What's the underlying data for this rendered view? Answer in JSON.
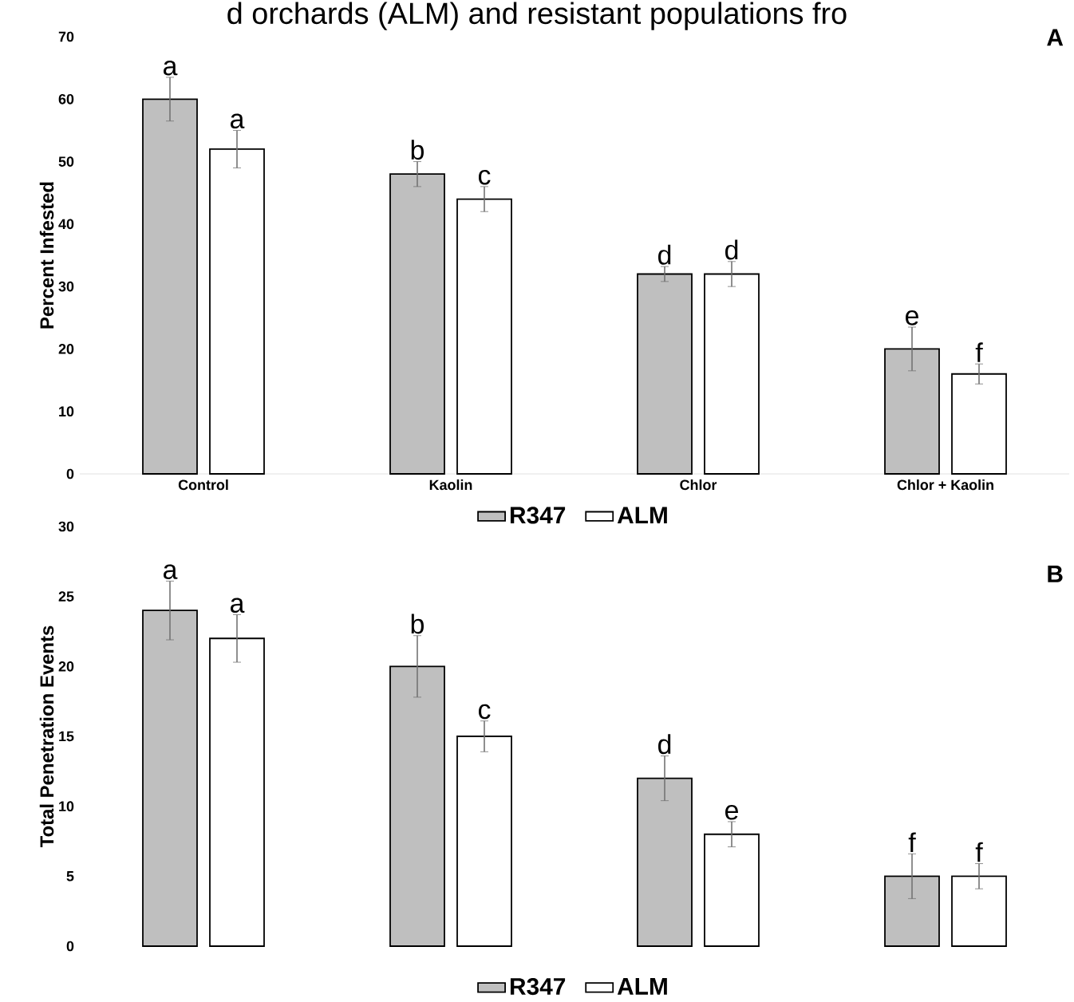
{
  "chart_data": [
    {
      "type": "bar",
      "title": "d orchards (ALM) and resistant populations fro",
      "ylabel": "Percent Infested",
      "categories": [
        "Control",
        "Kaolin",
        "Chlor",
        "Chlor + Kaolin"
      ],
      "ylim": [
        0,
        70
      ],
      "yticks": [
        0,
        10,
        20,
        30,
        40,
        50,
        60,
        70
      ],
      "legend": "bottom",
      "grid": false,
      "annotations": [
        "A"
      ],
      "series": [
        {
          "name": "R347",
          "color": "#bfbfbf",
          "values": [
            60,
            48,
            32,
            20
          ],
          "errors": [
            3.5,
            2,
            1.2,
            3.5
          ],
          "value_labels": [
            "a",
            "b",
            "d",
            "e"
          ]
        },
        {
          "name": "ALM",
          "color": "#ffffff",
          "values": [
            52,
            44,
            32,
            16
          ],
          "errors": [
            3,
            2,
            2,
            1.6
          ],
          "value_labels": [
            "a",
            "c",
            "d",
            "f"
          ]
        }
      ]
    },
    {
      "type": "bar",
      "ylabel": "Total Penetration Events",
      "categories": [
        null,
        null,
        null,
        null
      ],
      "ylim": [
        0,
        30
      ],
      "yticks": [
        0,
        5,
        10,
        15,
        20,
        25,
        30
      ],
      "legend": "bottom",
      "grid": false,
      "annotations": [
        "B"
      ],
      "series": [
        {
          "name": "R347",
          "color": "#bfbfbf",
          "values": [
            24,
            20,
            12,
            5
          ],
          "errors": [
            2.1,
            2.2,
            1.6,
            1.6
          ],
          "value_labels": [
            "a",
            "b",
            "d",
            "f"
          ]
        },
        {
          "name": "ALM",
          "color": "#ffffff",
          "values": [
            22,
            15,
            8,
            5
          ],
          "errors": [
            1.7,
            1.1,
            0.9,
            0.9
          ],
          "value_labels": [
            "a",
            "c",
            "e",
            "f"
          ]
        }
      ]
    }
  ]
}
